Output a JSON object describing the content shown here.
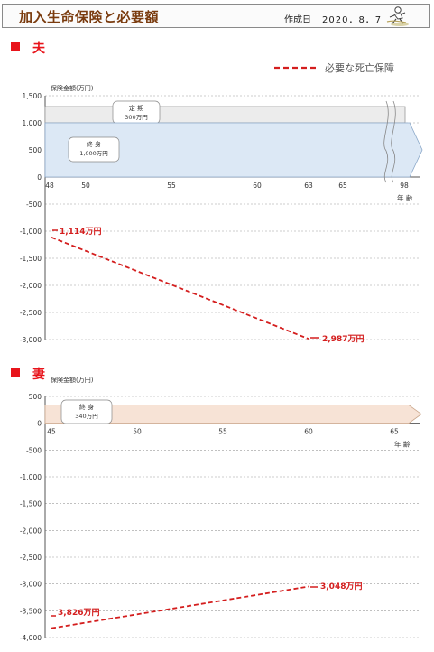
{
  "header": {
    "title": "加入生命保険と必要額",
    "date_label": "作成日",
    "date_value": "2020．8．7",
    "logo_icon": "walking-person-logo"
  },
  "colors": {
    "accent": "#e8141b",
    "header_title": "#7a3b0e",
    "dashed_line": "#d41e1e",
    "husband_term_fill": "#ececec",
    "husband_life_fill": "#dce8f5",
    "wife_life_fill": "#f7e3d6"
  },
  "legend": {
    "label": "必要な死亡保障"
  },
  "chart_data": [
    {
      "type": "line",
      "section_label": "夫",
      "ylabel": "保険金額(万円)",
      "xlabel": "年 齢",
      "ylim": [
        -3000,
        1500
      ],
      "yticks": [
        1500,
        1000,
        500,
        0,
        -500,
        -1000,
        -1500,
        -2000,
        -2500,
        -3000
      ],
      "ytick_labels": [
        "1,500",
        "1,000",
        "500",
        "0",
        "-500",
        "-1,000",
        "-1,500",
        "-2,000",
        "-2,500",
        "-3,000"
      ],
      "xticks": [
        "48",
        "50",
        "55",
        "60",
        "63",
        "65",
        "98"
      ],
      "insurance": [
        {
          "label": "定 期",
          "amount_label": "300万円",
          "base": 1000,
          "top": 1300
        },
        {
          "label": "終 身",
          "amount_label": "1,000万円",
          "base": 0,
          "top": 1000
        }
      ],
      "series": [
        {
          "name": "必要な死亡保障",
          "x": [
            48,
            63
          ],
          "values": [
            -1114,
            -2987
          ]
        }
      ],
      "annotations": [
        "1,114万円",
        "2,987万円"
      ],
      "grid": true
    },
    {
      "type": "line",
      "section_label": "妻",
      "ylabel": "保険金額(万円)",
      "xlabel": "年 齢",
      "ylim": [
        -4000,
        500
      ],
      "yticks": [
        500,
        0,
        -500,
        -1000,
        -1500,
        -2000,
        -2500,
        -3000,
        -3500,
        -4000
      ],
      "ytick_labels": [
        "500",
        "0",
        "-500",
        "-1,000",
        "-1,500",
        "-2,000",
        "-2,500",
        "-3,000",
        "-3,500",
        "-4,000"
      ],
      "xticks": [
        "45",
        "50",
        "55",
        "60",
        "65"
      ],
      "insurance": [
        {
          "label": "終 身",
          "amount_label": "340万円",
          "base": 0,
          "top": 340
        }
      ],
      "series": [
        {
          "name": "必要な死亡保障",
          "x": [
            45,
            60
          ],
          "values": [
            -3826,
            -3048
          ]
        }
      ],
      "annotations": [
        "3,826万円",
        "3,048万円"
      ],
      "grid": true
    }
  ]
}
